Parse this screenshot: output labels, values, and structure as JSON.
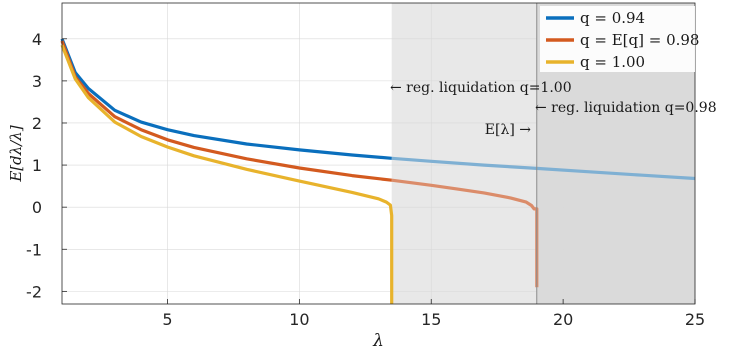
{
  "chart_data": {
    "type": "line",
    "xlabel": "λ",
    "ylabel": "E[dλ/λ]",
    "xlim": [
      1,
      25
    ],
    "ylim": [
      -2.3,
      4.85
    ],
    "xticks": [
      5,
      10,
      15,
      20,
      25
    ],
    "yticks": [
      4,
      3,
      2,
      1,
      0,
      -1,
      -2
    ],
    "grid": true,
    "legend_position": "top-right",
    "shaded_regions": [
      {
        "from": 13.5,
        "to": 25,
        "color": "#e8e8e8"
      },
      {
        "from": 19,
        "to": 25,
        "color": "#dadada"
      }
    ],
    "vline": {
      "x": 19,
      "color": "#8c8c8c"
    },
    "annotations": {
      "a1": "← reg. liquidation q=1.00",
      "a2": "← reg. liquidation q=0.98",
      "a3": "E[λ] →"
    },
    "series": [
      {
        "name": "q = 0.94",
        "color": "#0a6fbd",
        "faded_color": "#7fb0d3",
        "x": [
          1,
          1.5,
          2,
          3,
          4,
          5,
          6,
          8,
          10,
          12,
          13.5,
          15,
          17,
          19,
          21,
          23,
          25
        ],
        "y": [
          4.0,
          3.2,
          2.82,
          2.3,
          2.02,
          1.84,
          1.7,
          1.5,
          1.36,
          1.24,
          1.16,
          1.09,
          1.0,
          0.92,
          0.84,
          0.76,
          0.68
        ]
      },
      {
        "name": "q = E[q] = 0.98",
        "color": "#d35a1f",
        "faded_color": "#db8c6a",
        "x": [
          1,
          1.5,
          2,
          3,
          4,
          5,
          6,
          8,
          10,
          12,
          13.5,
          15,
          16,
          17,
          18,
          18.6,
          18.8,
          18.9,
          18.95,
          19,
          19,
          19
        ],
        "y": [
          3.95,
          3.1,
          2.7,
          2.15,
          1.84,
          1.6,
          1.42,
          1.15,
          0.93,
          0.75,
          0.64,
          0.52,
          0.43,
          0.34,
          0.22,
          0.12,
          0.04,
          -0.04,
          -0.04,
          -0.04,
          -1.5,
          -1.9
        ]
      },
      {
        "name": "q = 1.00",
        "color": "#e8b32c",
        "faded_color": "#e8b32c",
        "x": [
          1,
          1.5,
          2,
          3,
          4,
          5,
          6,
          8,
          10,
          12,
          13,
          13.3,
          13.45,
          13.5,
          13.5
        ],
        "y": [
          3.85,
          3.05,
          2.6,
          2.02,
          1.68,
          1.43,
          1.22,
          0.9,
          0.62,
          0.35,
          0.2,
          0.12,
          0.05,
          -0.2,
          -2.3
        ]
      }
    ]
  }
}
